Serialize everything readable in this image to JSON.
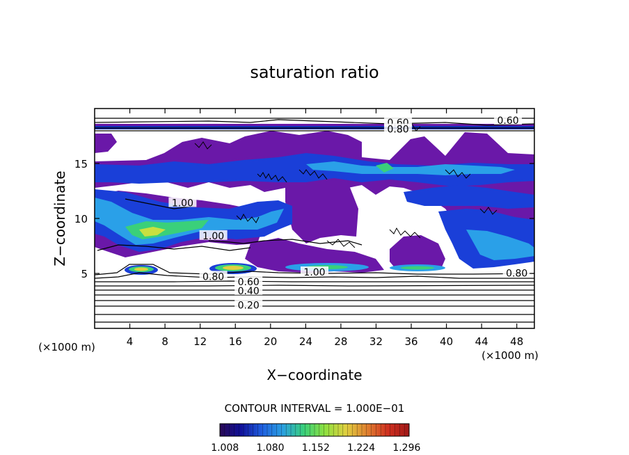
{
  "chart_data": {
    "type": "heatmap",
    "title": "saturation ratio",
    "xlabel": "X−coordinate",
    "ylabel": "Z−coordinate",
    "x_unit": "(×1000 m)",
    "z_unit": "(×1000 m)",
    "xlim": [
      0,
      50
    ],
    "ylim": [
      0,
      20
    ],
    "x_ticks": [
      4,
      8,
      12,
      16,
      20,
      24,
      28,
      32,
      36,
      40,
      44,
      48
    ],
    "y_ticks": [
      5,
      10,
      15
    ],
    "contour_interval_text": "CONTOUR INTERVAL = 1.000E−01",
    "colorbar": {
      "ticks": [
        "1.008",
        "1.080",
        "1.152",
        "1.224",
        "1.296"
      ],
      "range": [
        1.0,
        1.3
      ],
      "colors": [
        "#2a0a55",
        "#10109a",
        "#1f5fe0",
        "#2aa0e0",
        "#3ad07a",
        "#8fe040",
        "#e0d040",
        "#e08030",
        "#d03020",
        "#a01818"
      ]
    },
    "contour_labels": [
      {
        "text": "0.60",
        "x": 34.5,
        "z": 18.6
      },
      {
        "text": "0.80",
        "x": 34.5,
        "z": 18.0
      },
      {
        "text": "0.60",
        "x": 47.0,
        "z": 18.8
      },
      {
        "text": "1.00",
        "x": 10.0,
        "z": 11.3
      },
      {
        "text": "1.00",
        "x": 13.5,
        "z": 8.3
      },
      {
        "text": "1.00",
        "x": 25.0,
        "z": 5.0
      },
      {
        "text": "0.80",
        "x": 13.5,
        "z": 4.6
      },
      {
        "text": "0.60",
        "x": 17.5,
        "z": 4.1
      },
      {
        "text": "0.40",
        "x": 17.5,
        "z": 3.3
      },
      {
        "text": "0.20",
        "x": 17.5,
        "z": 2.0
      },
      {
        "text": "0.80",
        "x": 48.0,
        "z": 4.9
      }
    ],
    "supersaturated_regions": [
      {
        "type": "band",
        "x": [
          0,
          50
        ],
        "z": [
          17.9,
          18.3
        ],
        "value": 1.02
      },
      {
        "type": "band",
        "x": [
          0,
          50
        ],
        "z": [
          14.0,
          15.2
        ],
        "value": 1.05
      },
      {
        "type": "blob",
        "x": [
          0,
          16
        ],
        "z": [
          8,
          13
        ],
        "value": 1.12
      },
      {
        "type": "blob",
        "x": [
          3.5,
          7
        ],
        "z": [
          5.2,
          5.9
        ],
        "value": 1.18
      },
      {
        "type": "blob",
        "x": [
          13,
          17
        ],
        "z": [
          5.2,
          5.9
        ],
        "value": 1.2
      },
      {
        "type": "blob",
        "x": [
          21,
          33
        ],
        "z": [
          5.0,
          6.0
        ],
        "value": 1.1
      },
      {
        "type": "blob",
        "x": [
          34,
          41
        ],
        "z": [
          5.0,
          5.9
        ],
        "value": 1.15
      },
      {
        "type": "blob",
        "x": [
          42,
          50
        ],
        "z": [
          6,
          9
        ],
        "value": 1.08
      }
    ]
  }
}
